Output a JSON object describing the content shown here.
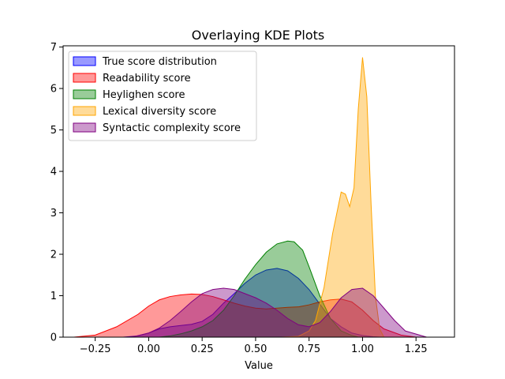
{
  "chart_data": {
    "type": "area",
    "title": "Overlaying KDE Plots",
    "xlabel": "Value",
    "ylabel": "",
    "xlim": [
      -0.4,
      1.43
    ],
    "ylim": [
      0,
      7.03
    ],
    "xticks": [
      -0.25,
      0.0,
      0.25,
      0.5,
      0.75,
      1.0,
      1.25
    ],
    "xtick_labels": [
      "−0.25",
      "0.00",
      "0.25",
      "0.50",
      "0.75",
      "1.00",
      "1.25"
    ],
    "yticks": [
      0,
      1,
      2,
      3,
      4,
      5,
      6,
      7
    ],
    "ytick_labels": [
      "0",
      "1",
      "2",
      "3",
      "4",
      "5",
      "6",
      "7"
    ],
    "grid": false,
    "legend_position": "top-left",
    "series": [
      {
        "name": "True score distribution",
        "color": "#0000ff",
        "x": [
          -0.12,
          -0.05,
          0.0,
          0.05,
          0.1,
          0.15,
          0.2,
          0.25,
          0.3,
          0.35,
          0.4,
          0.45,
          0.5,
          0.55,
          0.6,
          0.65,
          0.7,
          0.75,
          0.8,
          0.85,
          0.9,
          0.95,
          1.0,
          1.05,
          1.08
        ],
        "y": [
          0.0,
          0.03,
          0.1,
          0.2,
          0.25,
          0.28,
          0.31,
          0.38,
          0.55,
          0.82,
          1.05,
          1.3,
          1.5,
          1.62,
          1.66,
          1.6,
          1.42,
          1.15,
          0.8,
          0.45,
          0.25,
          0.1,
          0.04,
          0.01,
          0.0
        ]
      },
      {
        "name": "Readability score",
        "color": "#ff0000",
        "x": [
          -0.35,
          -0.25,
          -0.15,
          -0.05,
          0.0,
          0.05,
          0.1,
          0.15,
          0.2,
          0.25,
          0.3,
          0.35,
          0.4,
          0.45,
          0.5,
          0.55,
          0.6,
          0.65,
          0.7,
          0.75,
          0.8,
          0.85,
          0.9,
          0.95,
          1.0,
          1.05,
          1.1,
          1.18,
          1.25
        ],
        "y": [
          0.0,
          0.05,
          0.25,
          0.55,
          0.75,
          0.9,
          0.98,
          1.02,
          1.04,
          1.03,
          0.98,
          0.9,
          0.82,
          0.75,
          0.7,
          0.68,
          0.7,
          0.72,
          0.73,
          0.78,
          0.85,
          0.9,
          0.92,
          0.85,
          0.65,
          0.4,
          0.2,
          0.05,
          0.0
        ]
      },
      {
        "name": "Heylighen score",
        "color": "#008000",
        "x": [
          0.05,
          0.1,
          0.15,
          0.2,
          0.25,
          0.3,
          0.35,
          0.4,
          0.45,
          0.5,
          0.55,
          0.6,
          0.65,
          0.68,
          0.72,
          0.75,
          0.8,
          0.85,
          0.9,
          0.95,
          0.98
        ],
        "y": [
          0.0,
          0.03,
          0.08,
          0.15,
          0.25,
          0.4,
          0.65,
          1.0,
          1.4,
          1.75,
          2.05,
          2.25,
          2.32,
          2.3,
          2.1,
          1.7,
          1.0,
          0.45,
          0.15,
          0.04,
          0.0
        ]
      },
      {
        "name": "Lexical diversity score",
        "color": "#ffa500",
        "x": [
          0.62,
          0.7,
          0.75,
          0.78,
          0.82,
          0.86,
          0.9,
          0.92,
          0.94,
          0.96,
          0.98,
          1.0,
          1.02,
          1.04,
          1.06,
          1.08,
          1.1
        ],
        "y": [
          0.0,
          0.02,
          0.15,
          0.4,
          1.2,
          2.5,
          3.5,
          3.45,
          3.15,
          3.6,
          5.5,
          6.75,
          5.8,
          3.2,
          1.0,
          0.2,
          0.0
        ]
      },
      {
        "name": "Syntactic complexity score",
        "color": "#800080",
        "x": [
          -0.08,
          0.0,
          0.05,
          0.1,
          0.15,
          0.2,
          0.25,
          0.3,
          0.35,
          0.4,
          0.45,
          0.5,
          0.55,
          0.6,
          0.65,
          0.7,
          0.75,
          0.8,
          0.85,
          0.9,
          0.95,
          1.0,
          1.05,
          1.1,
          1.15,
          1.2,
          1.3
        ],
        "y": [
          0.0,
          0.1,
          0.22,
          0.4,
          0.62,
          0.85,
          1.05,
          1.15,
          1.18,
          1.15,
          1.05,
          0.95,
          0.82,
          0.65,
          0.45,
          0.3,
          0.25,
          0.35,
          0.62,
          0.95,
          1.15,
          1.18,
          1.0,
          0.7,
          0.4,
          0.15,
          0.0
        ]
      }
    ]
  }
}
